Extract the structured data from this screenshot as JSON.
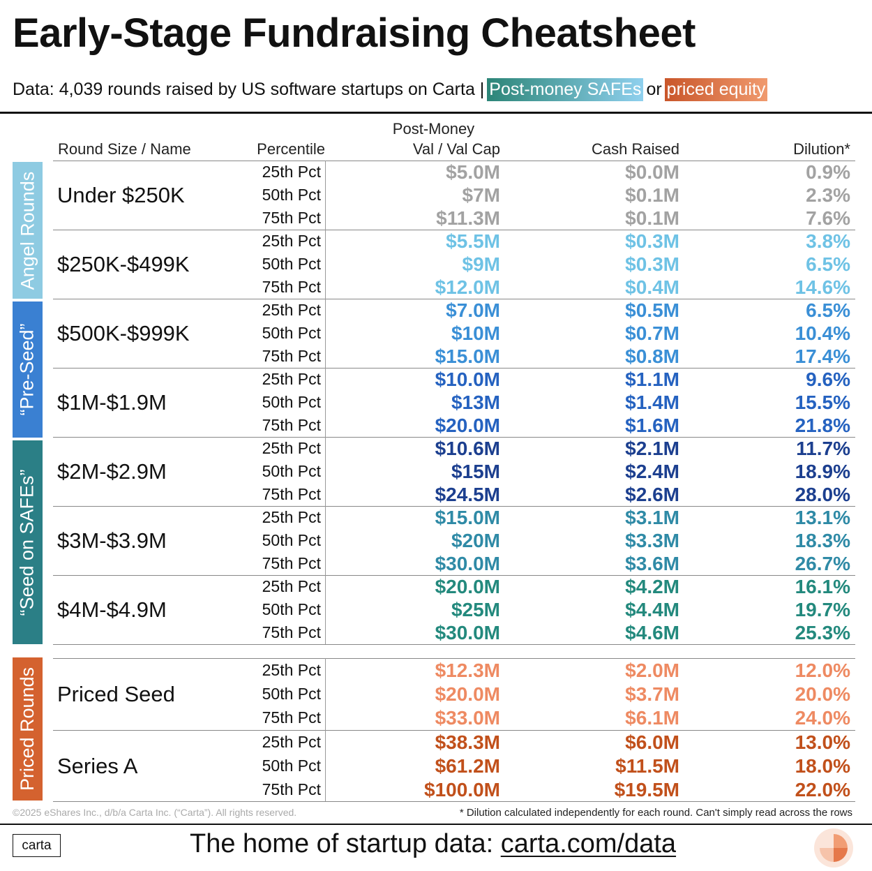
{
  "title": "Early-Stage Fundraising Cheatsheet",
  "subtitle": {
    "prefix": "Data: 4,039 rounds raised by US software startups on Carta |",
    "safe_tag": "Post-money SAFEs",
    "or_text": "or",
    "priced_tag": "priced equity"
  },
  "headers": {
    "round": "Round Size / Name",
    "percentile": "Percentile",
    "valuation_line1": "Post-Money",
    "valuation_line2": "Val / Val Cap",
    "cash": "Cash Raised",
    "dilution": "Dilution*"
  },
  "bands": [
    {
      "label": "Angel Rounds",
      "color": "#8ecbe2"
    },
    {
      "label": "“Pre-Seed”",
      "color": "#3a80d2"
    },
    {
      "label": "“Seed on SAFEs”",
      "color": "#2b7f86"
    },
    {
      "label": "Priced Rounds",
      "color": "#d4622f"
    }
  ],
  "groups": [
    {
      "name": "Under $250K",
      "color": "#a2a2a2",
      "rows": [
        {
          "pct": "25th Pct",
          "val": "$5.0M",
          "cash": "$0.0M",
          "dil": "0.9%"
        },
        {
          "pct": "50th Pct",
          "val": "$7M",
          "cash": "$0.1M",
          "dil": "2.3%"
        },
        {
          "pct": "75th Pct",
          "val": "$11.3M",
          "cash": "$0.1M",
          "dil": "7.6%"
        }
      ]
    },
    {
      "name": "$250K-$499K",
      "color": "#6ec2e5",
      "rows": [
        {
          "pct": "25th Pct",
          "val": "$5.5M",
          "cash": "$0.3M",
          "dil": "3.8%"
        },
        {
          "pct": "50th Pct",
          "val": "$9M",
          "cash": "$0.3M",
          "dil": "6.5%"
        },
        {
          "pct": "75th Pct",
          "val": "$12.0M",
          "cash": "$0.4M",
          "dil": "14.6%"
        }
      ]
    },
    {
      "name": "$500K-$999K",
      "color": "#3a8fd6",
      "rows": [
        {
          "pct": "25th Pct",
          "val": "$7.0M",
          "cash": "$0.5M",
          "dil": "6.5%"
        },
        {
          "pct": "50th Pct",
          "val": "$10M",
          "cash": "$0.7M",
          "dil": "10.4%"
        },
        {
          "pct": "75th Pct",
          "val": "$15.0M",
          "cash": "$0.8M",
          "dil": "17.4%"
        }
      ]
    },
    {
      "name": "$1M-$1.9M",
      "color": "#2562c0",
      "rows": [
        {
          "pct": "25th Pct",
          "val": "$10.0M",
          "cash": "$1.1M",
          "dil": "9.6%"
        },
        {
          "pct": "50th Pct",
          "val": "$13M",
          "cash": "$1.4M",
          "dil": "15.5%"
        },
        {
          "pct": "75th Pct",
          "val": "$20.0M",
          "cash": "$1.6M",
          "dil": "21.8%"
        }
      ]
    },
    {
      "name": "$2M-$2.9M",
      "color": "#1c3f8f",
      "rows": [
        {
          "pct": "25th Pct",
          "val": "$10.6M",
          "cash": "$2.1M",
          "dil": "11.7%"
        },
        {
          "pct": "50th Pct",
          "val": "$15M",
          "cash": "$2.4M",
          "dil": "18.9%"
        },
        {
          "pct": "75th Pct",
          "val": "$24.5M",
          "cash": "$2.6M",
          "dil": "28.0%"
        }
      ]
    },
    {
      "name": "$3M-$3.9M",
      "color": "#2f8aa6",
      "rows": [
        {
          "pct": "25th Pct",
          "val": "$15.0M",
          "cash": "$3.1M",
          "dil": "13.1%"
        },
        {
          "pct": "50th Pct",
          "val": "$20M",
          "cash": "$3.3M",
          "dil": "18.3%"
        },
        {
          "pct": "75th Pct",
          "val": "$30.0M",
          "cash": "$3.6M",
          "dil": "26.7%"
        }
      ]
    },
    {
      "name": "$4M-$4.9M",
      "color": "#23897d",
      "rows": [
        {
          "pct": "25th Pct",
          "val": "$20.0M",
          "cash": "$4.2M",
          "dil": "16.1%"
        },
        {
          "pct": "50th Pct",
          "val": "$25M",
          "cash": "$4.4M",
          "dil": "19.7%"
        },
        {
          "pct": "75th Pct",
          "val": "$30.0M",
          "cash": "$4.6M",
          "dil": "25.3%"
        }
      ]
    },
    {
      "name": "Priced Seed",
      "color": "#ee8a62",
      "rows": [
        {
          "pct": "25th Pct",
          "val": "$12.3M",
          "cash": "$2.0M",
          "dil": "12.0%"
        },
        {
          "pct": "50th Pct",
          "val": "$20.0M",
          "cash": "$3.7M",
          "dil": "20.0%"
        },
        {
          "pct": "75th Pct",
          "val": "$33.0M",
          "cash": "$6.1M",
          "dil": "24.0%"
        }
      ]
    },
    {
      "name": "Series A",
      "color": "#c1501b",
      "rows": [
        {
          "pct": "25th Pct",
          "val": "$38.3M",
          "cash": "$6.0M",
          "dil": "13.0%"
        },
        {
          "pct": "50th Pct",
          "val": "$61.2M",
          "cash": "$11.5M",
          "dil": "18.0%"
        },
        {
          "pct": "75th Pct",
          "val": "$100.0M",
          "cash": "$19.5M",
          "dil": "22.0%"
        }
      ]
    }
  ],
  "copyright": "©2025 eShares Inc., d/b/a Carta Inc. (“Carta”). All rights reserved.",
  "footnote": "* Dilution calculated independently for each round. Can't simply read across the rows",
  "logo": "carta",
  "tagline": {
    "prefix": "The home of startup data:",
    "link": "carta.com/data"
  }
}
